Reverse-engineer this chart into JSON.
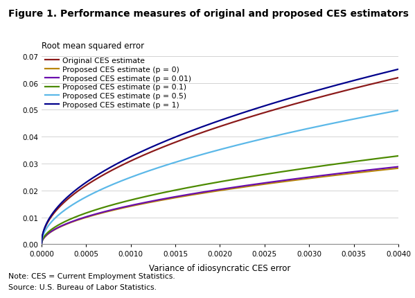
{
  "title": "Figure 1. Performance measures of original and proposed CES estimators",
  "ylabel": "Root mean squared error",
  "xlabel": "Variance of idiosyncratic CES error",
  "note": "Note: CES = Current Employment Statistics.",
  "source": "Source: U.S. Bureau of Labor Statistics.",
  "xlim": [
    0.0,
    0.004
  ],
  "ylim": [
    0.0,
    0.07
  ],
  "x_ticks": [
    0.0,
    0.0005,
    0.001,
    0.0015,
    0.002,
    0.0025,
    0.003,
    0.0035,
    0.004
  ],
  "y_ticks": [
    0.0,
    0.01,
    0.02,
    0.03,
    0.04,
    0.05,
    0.06,
    0.07
  ],
  "series": [
    {
      "label": "Original CES estimate",
      "color": "#8B1A1A",
      "linewidth": 1.6,
      "c0": 0.0,
      "c1": 0.96
    },
    {
      "label": "Proposed CES estimate (p = 0)",
      "color": "#B8860B",
      "linewidth": 1.6,
      "c0": 0.0,
      "c1": 0.2
    },
    {
      "label": "Proposed CES estimate (p = 0.01)",
      "color": "#6A0DAD",
      "linewidth": 1.6,
      "c0": 0.0,
      "c1": 0.208
    },
    {
      "label": "Proposed CES estimate (p = 0.1)",
      "color": "#4C8A00",
      "linewidth": 1.6,
      "c0": 0.0,
      "c1": 0.27
    },
    {
      "label": "Proposed CES estimate (p = 0.5)",
      "color": "#5BB8E8",
      "linewidth": 1.6,
      "c0": 0.0,
      "c1": 0.62
    },
    {
      "label": "Proposed CES estimate (p = 1)",
      "color": "#00008B",
      "linewidth": 1.6,
      "c0": 0.0,
      "c1": 1.06
    }
  ],
  "background_color": "#FFFFFF",
  "grid_color": "#CCCCCC",
  "figsize": [
    5.99,
    4.31
  ],
  "dpi": 100
}
